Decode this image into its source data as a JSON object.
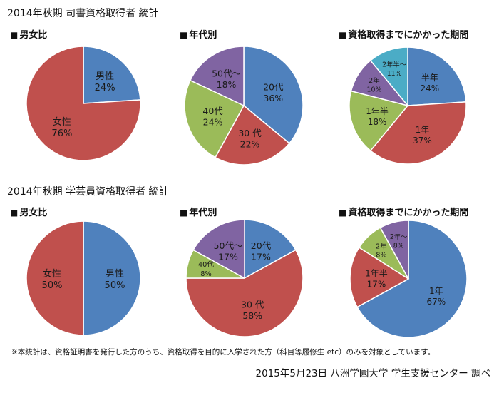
{
  "sections": [
    {
      "title": "2014年秋期 司書資格取得者 統計",
      "charts": [
        {
          "title": "男女比"
        },
        {
          "title": "年代別"
        },
        {
          "title": "資格取得までにかかった期間"
        }
      ]
    },
    {
      "title": "2014年秋期 学芸員資格取得者 統計",
      "charts": [
        {
          "title": "男女比"
        },
        {
          "title": "年代別"
        },
        {
          "title": "資格取得までにかかった期間"
        }
      ]
    }
  ],
  "footnote": "※本統計は、資格証明書を発行した方のうち、資格取得を目的に入学された方（科目等履修生 etc）のみを対象としています。",
  "credit": "2015年5月23日 八洲学園大学 学生支援センター 調べ",
  "colors": {
    "blue": "#4f81bd",
    "red": "#c0504d",
    "green": "#9bbb59",
    "purple": "#8064a2",
    "teal": "#4bacc6"
  },
  "chart_data": [
    {
      "type": "pie",
      "title": "男女比",
      "slices": [
        {
          "label": "男性",
          "value": 24,
          "display": "24%",
          "color": "#4f81bd"
        },
        {
          "label": "女性",
          "value": 76,
          "display": "76%",
          "color": "#c0504d"
        }
      ]
    },
    {
      "type": "pie",
      "title": "年代別",
      "slices": [
        {
          "label": "20代",
          "value": 36,
          "display": "36%",
          "color": "#4f81bd"
        },
        {
          "label": "30 代",
          "value": 22,
          "display": "22%",
          "color": "#c0504d"
        },
        {
          "label": "40代",
          "value": 24,
          "display": "24%",
          "color": "#9bbb59"
        },
        {
          "label": "50代～",
          "value": 18,
          "display": "18%",
          "color": "#8064a2"
        }
      ]
    },
    {
      "type": "pie",
      "title": "資格取得までにかかった期間",
      "slices": [
        {
          "label": "半年",
          "value": 24,
          "display": "24%",
          "color": "#4f81bd"
        },
        {
          "label": "1年",
          "value": 37,
          "display": "37%",
          "color": "#c0504d"
        },
        {
          "label": "1年半",
          "value": 18,
          "display": "18%",
          "color": "#9bbb59"
        },
        {
          "label": "2年",
          "value": 10,
          "display": "10%",
          "color": "#8064a2"
        },
        {
          "label": "2年半～",
          "value": 11,
          "display": "11%",
          "color": "#4bacc6"
        }
      ]
    },
    {
      "type": "pie",
      "title": "男女比",
      "slices": [
        {
          "label": "男性",
          "value": 50,
          "display": "50%",
          "color": "#4f81bd"
        },
        {
          "label": "女性",
          "value": 50,
          "display": "50%",
          "color": "#c0504d"
        }
      ]
    },
    {
      "type": "pie",
      "title": "年代別",
      "slices": [
        {
          "label": "20代",
          "value": 17,
          "display": "17%",
          "color": "#4f81bd"
        },
        {
          "label": "30 代",
          "value": 58,
          "display": "58%",
          "color": "#c0504d"
        },
        {
          "label": "40代",
          "value": 8,
          "display": "8%",
          "color": "#9bbb59"
        },
        {
          "label": "50代～",
          "value": 17,
          "display": "17%",
          "color": "#8064a2"
        }
      ]
    },
    {
      "type": "pie",
      "title": "資格取得までにかかった期間",
      "slices": [
        {
          "label": "1年",
          "value": 67,
          "display": "67%",
          "color": "#4f81bd"
        },
        {
          "label": "1年半",
          "value": 17,
          "display": "17%",
          "color": "#c0504d"
        },
        {
          "label": "2年",
          "value": 8,
          "display": "8%",
          "color": "#9bbb59"
        },
        {
          "label": "2年～",
          "value": 8,
          "display": "8%",
          "color": "#8064a2"
        }
      ]
    }
  ]
}
